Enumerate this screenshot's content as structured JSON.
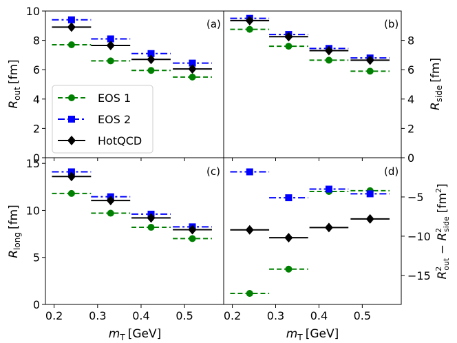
{
  "chart_data": [
    {
      "type": "line",
      "panel_label": "(a)",
      "ylabel_main": "R",
      "ylabel_sub": "out",
      "ylabel_unit": "[fm]",
      "ylim": [
        0,
        10
      ],
      "yticks": [
        0,
        2,
        4,
        6,
        8,
        10
      ],
      "y_axis_side": "left",
      "series": [
        {
          "name": "EOS 1",
          "y": [
            7.7,
            6.6,
            5.95,
            5.5
          ]
        },
        {
          "name": "EOS 2",
          "y": [
            9.4,
            8.1,
            7.1,
            6.45
          ]
        },
        {
          "name": "HotQCD",
          "y": [
            8.9,
            7.65,
            6.7,
            6.05
          ]
        }
      ]
    },
    {
      "type": "line",
      "panel_label": "(b)",
      "ylabel_main": "R",
      "ylabel_sub": "side",
      "ylabel_unit": "[fm]",
      "ylim": [
        0,
        10
      ],
      "yticks": [
        0,
        2,
        4,
        6,
        8
      ],
      "y_axis_side": "right",
      "series": [
        {
          "name": "EOS 1",
          "y": [
            8.75,
            7.6,
            6.65,
            5.9
          ]
        },
        {
          "name": "EOS 2",
          "y": [
            9.5,
            8.4,
            7.45,
            6.8
          ]
        },
        {
          "name": "HotQCD",
          "y": [
            9.35,
            8.25,
            7.3,
            6.65
          ]
        }
      ]
    },
    {
      "type": "line",
      "panel_label": "(c)",
      "ylabel_main": "R",
      "ylabel_sub": "long",
      "ylabel_unit": "[fm]",
      "ylim": [
        0,
        15.6
      ],
      "yticks": [
        0,
        5,
        10,
        15
      ],
      "y_axis_side": "left",
      "series": [
        {
          "name": "EOS 1",
          "y": [
            11.8,
            9.7,
            8.2,
            7.0
          ]
        },
        {
          "name": "EOS 2",
          "y": [
            14.1,
            11.45,
            9.6,
            8.25
          ]
        },
        {
          "name": "HotQCD",
          "y": [
            13.6,
            11.05,
            9.2,
            7.95
          ]
        }
      ]
    },
    {
      "type": "line",
      "panel_label": "(d)",
      "ylabel_main": "R",
      "ylabel_sub1": "out",
      "ylabel_minus": " − ",
      "ylabel_sub2": "side",
      "ylabel_sup": "2",
      "ylabel_unit_start": "[fm",
      "ylabel_unit_end": "]",
      "ylim": [
        -18.7,
        0
      ],
      "yticks": [
        -15,
        -10,
        -5
      ],
      "y_axis_side": "right",
      "series": [
        {
          "name": "EOS 1",
          "y": [
            -17.3,
            -14.2,
            -4.3,
            -4.2
          ]
        },
        {
          "name": "EOS 2",
          "y": [
            -1.8,
            -5.1,
            -4.0,
            -4.6
          ]
        },
        {
          "name": "HotQCD",
          "y": [
            -9.2,
            -10.2,
            -8.9,
            -7.8
          ]
        }
      ]
    }
  ],
  "shared": {
    "x_centers": [
      0.24,
      0.33,
      0.423,
      0.518
    ],
    "x_halfwidths": [
      0.045,
      0.045,
      0.045,
      0.045
    ],
    "xlim": [
      0.18,
      0.59
    ],
    "xticks": [
      "0.2",
      "0.3",
      "0.4",
      "0.5"
    ],
    "xtick_values": [
      0.2,
      0.3,
      0.4,
      0.5
    ],
    "xlabel_main": "m",
    "xlabel_sub": "T",
    "xlabel_unit": "[GeV]",
    "legend": [
      {
        "label": "EOS 1",
        "color": "#008000",
        "dash": "dashed",
        "marker": "circle"
      },
      {
        "label": "EOS 2",
        "color": "#0000ff",
        "dash": "dashdot",
        "marker": "square"
      },
      {
        "label": "HotQCD",
        "color": "#000000",
        "dash": "solid",
        "marker": "diamond"
      }
    ],
    "legend_location": "lower-left of panel (a)"
  }
}
